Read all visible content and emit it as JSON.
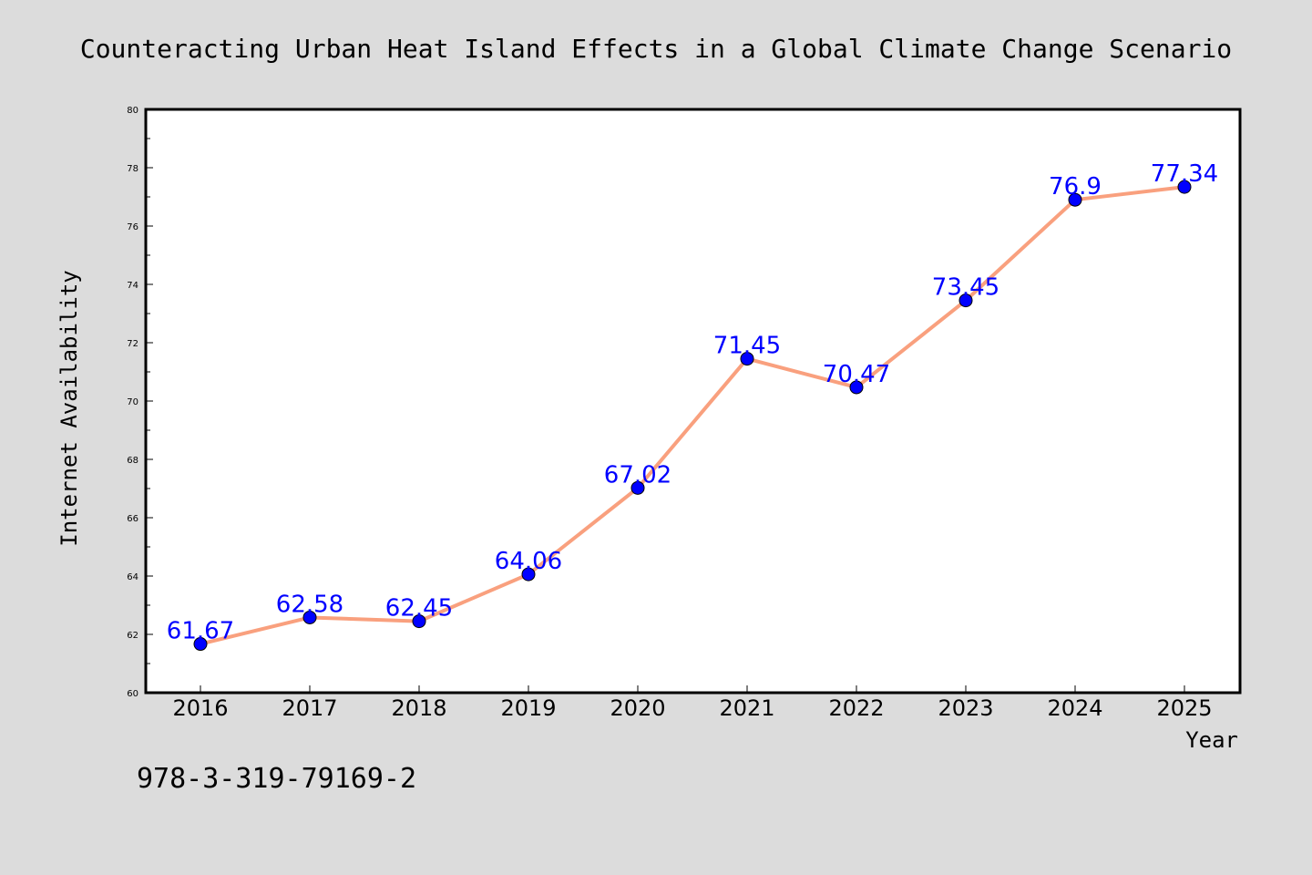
{
  "chart_data": {
    "type": "line",
    "title": "Counteracting Urban Heat Island Effects in a Global Climate Change Scenario",
    "xlabel": "Year",
    "ylabel": "Internet Availability",
    "categories": [
      "2016",
      "2017",
      "2018",
      "2019",
      "2020",
      "2021",
      "2022",
      "2023",
      "2024",
      "2025"
    ],
    "series": [
      {
        "values": [
          61.67,
          62.58,
          62.45,
          64.06,
          67.02,
          71.45,
          70.47,
          73.45,
          76.9,
          77.34
        ],
        "labels": [
          "61.67",
          "62.58",
          "62.45",
          "64.06",
          "67.02",
          "71.45",
          "70.47",
          "73.45",
          "76.9",
          "77.34"
        ]
      }
    ],
    "ylim": [
      60,
      80
    ],
    "yticks": [
      "60",
      "62",
      "64",
      "66",
      "68",
      "70",
      "72",
      "74",
      "76",
      "78",
      "80"
    ],
    "grid": false,
    "colors": {
      "line": "#f9a07e",
      "marker": "#0000ff",
      "label": "#0000ff",
      "background": "#dcdcdc",
      "plot_background": "#ffffff"
    }
  },
  "annotation": {
    "isbn": "978-3-319-79169-2"
  }
}
